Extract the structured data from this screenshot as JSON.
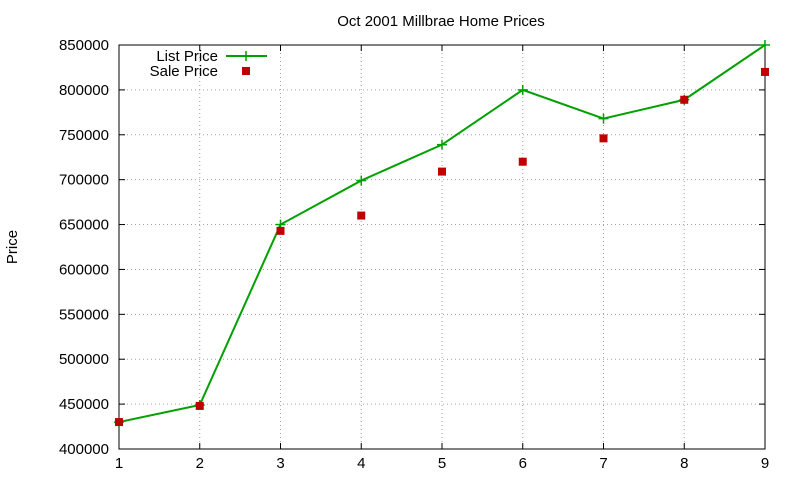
{
  "chart_data": {
    "type": "line",
    "title": "Oct 2001 Millbrae Home Prices",
    "xlabel": "",
    "ylabel": "Price",
    "x": [
      1,
      2,
      3,
      4,
      5,
      6,
      7,
      8,
      9
    ],
    "xlim": [
      1,
      9
    ],
    "ylim": [
      400000,
      850000
    ],
    "xticks": [
      "1",
      "2",
      "3",
      "4",
      "5",
      "6",
      "7",
      "8",
      "9"
    ],
    "yticks": [
      "400000",
      "450000",
      "500000",
      "550000",
      "600000",
      "650000",
      "700000",
      "750000",
      "800000",
      "850000"
    ],
    "grid": true,
    "legend_position": "top-left",
    "series": [
      {
        "name": "List Price",
        "style": "linespoints",
        "marker": "plus",
        "color": "#00a000",
        "values": [
          430000,
          449000,
          650000,
          699000,
          739000,
          800000,
          768000,
          789000,
          850000
        ]
      },
      {
        "name": "Sale Price",
        "style": "points",
        "marker": "square",
        "color": "#c00000",
        "values": [
          430000,
          448000,
          643000,
          660000,
          709000,
          720000,
          746000,
          789000,
          820000
        ]
      }
    ]
  }
}
